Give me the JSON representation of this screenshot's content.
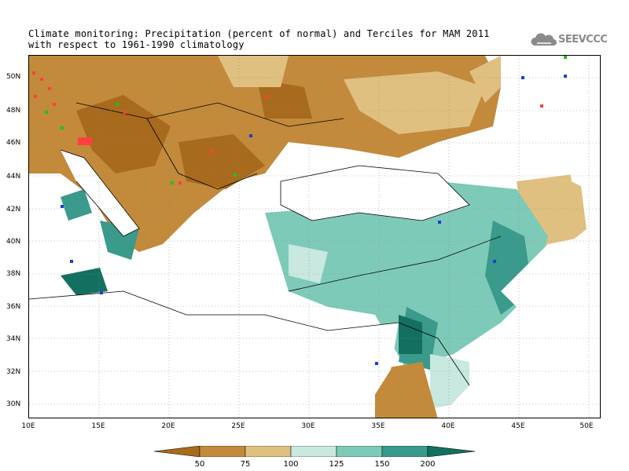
{
  "title": {
    "line1": "Climate monitoring: Precipitation (percent of normal) and Terciles for MAM 2011",
    "line2": "with respect to 1961-1990 climatology"
  },
  "logo": {
    "text": "SEEVCCC",
    "icon": "cloud-icon"
  },
  "axes": {
    "y_labels": [
      "50N",
      "48N",
      "46N",
      "44N",
      "42N",
      "40N",
      "38N",
      "36N",
      "34N",
      "32N",
      "30N"
    ],
    "x_labels": [
      "10E",
      "15E",
      "20E",
      "25E",
      "30E",
      "35E",
      "40E",
      "45E",
      "50E"
    ],
    "lat_range": [
      29,
      51.5
    ],
    "lon_range": [
      10,
      51
    ],
    "grid": "dotted"
  },
  "legend": {
    "labels": [
      "50",
      "75",
      "100",
      "125",
      "150",
      "200"
    ],
    "colors": [
      "#a86a1c",
      "#c28a3a",
      "#e0c080",
      "#c8e8e0",
      "#7ecab8",
      "#3a9a8c",
      "#137060"
    ],
    "tercile_colors": {
      "above": "#1a3fd6",
      "normal": "#14c814",
      "below": "#ff4040"
    }
  }
}
